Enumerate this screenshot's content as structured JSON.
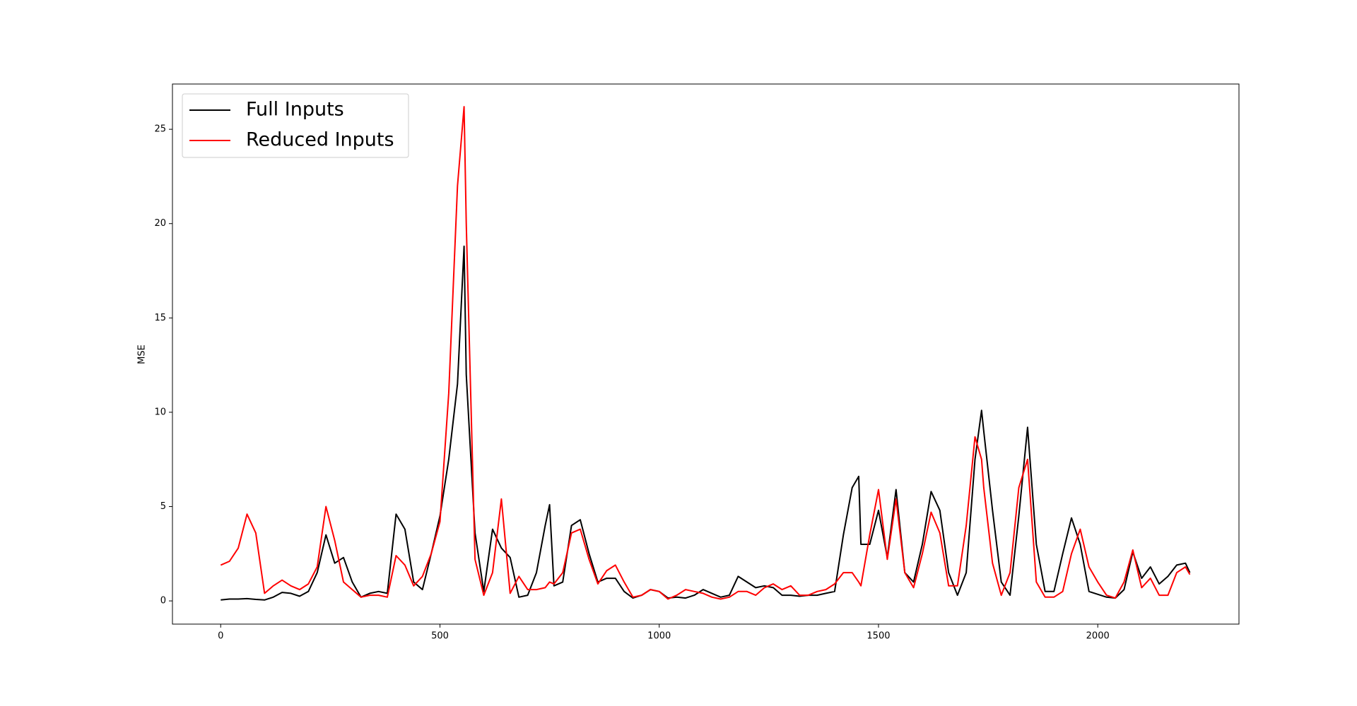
{
  "chart_data": {
    "type": "line",
    "y_label": "MSE",
    "x": [
      0,
      20,
      40,
      60,
      80,
      100,
      120,
      140,
      160,
      180,
      200,
      220,
      240,
      260,
      280,
      300,
      320,
      340,
      360,
      380,
      400,
      420,
      440,
      460,
      480,
      500,
      520,
      540,
      555,
      560,
      580,
      600,
      620,
      640,
      660,
      680,
      700,
      720,
      740,
      750,
      760,
      780,
      800,
      820,
      840,
      860,
      880,
      900,
      920,
      940,
      960,
      980,
      1000,
      1020,
      1040,
      1060,
      1080,
      1100,
      1120,
      1140,
      1160,
      1180,
      1200,
      1220,
      1240,
      1260,
      1280,
      1300,
      1320,
      1340,
      1360,
      1380,
      1400,
      1420,
      1440,
      1455,
      1460,
      1480,
      1500,
      1520,
      1540,
      1560,
      1580,
      1600,
      1620,
      1640,
      1660,
      1680,
      1700,
      1720,
      1735,
      1740,
      1760,
      1780,
      1800,
      1820,
      1840,
      1860,
      1880,
      1900,
      1920,
      1940,
      1960,
      1980,
      2000,
      2020,
      2040,
      2060,
      2080,
      2100,
      2120,
      2140,
      2160,
      2180,
      2200,
      2210
    ],
    "series": [
      {
        "name": "Full Inputs",
        "color": "#000000",
        "values": [
          0.05,
          0.1,
          0.1,
          0.12,
          0.08,
          0.05,
          0.2,
          0.45,
          0.4,
          0.25,
          0.5,
          1.5,
          3.5,
          2.0,
          2.3,
          1.0,
          0.2,
          0.4,
          0.5,
          0.4,
          4.6,
          3.8,
          1.0,
          0.6,
          2.5,
          4.5,
          7.5,
          11.5,
          18.8,
          12,
          3.6,
          0.5,
          3.8,
          2.8,
          2.3,
          0.2,
          0.3,
          1.5,
          4.0,
          5.1,
          0.8,
          1.0,
          4.0,
          4.3,
          2.5,
          1.0,
          1.2,
          1.2,
          0.5,
          0.15,
          0.3,
          0.6,
          0.5,
          0.15,
          0.2,
          0.15,
          0.3,
          0.6,
          0.4,
          0.2,
          0.3,
          1.3,
          1.0,
          0.7,
          0.8,
          0.7,
          0.3,
          0.3,
          0.25,
          0.3,
          0.3,
          0.4,
          0.5,
          3.5,
          6.0,
          6.6,
          3.0,
          3.0,
          4.8,
          2.3,
          5.9,
          1.5,
          1.0,
          3.0,
          5.8,
          4.8,
          1.5,
          0.3,
          1.5,
          7.5,
          10.1,
          9.0,
          4.8,
          1.0,
          0.3,
          4.5,
          9.2,
          3.0,
          0.5,
          0.5,
          2.5,
          4.4,
          3.0,
          0.5,
          0.35,
          0.2,
          0.15,
          0.6,
          2.6,
          1.2,
          1.8,
          0.9,
          1.3,
          1.9,
          2.0,
          1.5
        ]
      },
      {
        "name": "Reduced Inputs",
        "color": "#ff0000",
        "values": [
          1.9,
          2.1,
          2.8,
          4.6,
          3.6,
          0.4,
          0.8,
          1.1,
          0.8,
          0.6,
          0.9,
          1.8,
          5.0,
          3.2,
          1.0,
          0.6,
          0.2,
          0.3,
          0.3,
          0.2,
          2.4,
          1.9,
          0.8,
          1.3,
          2.5,
          4.2,
          11,
          22,
          26.2,
          20,
          2.2,
          0.3,
          1.5,
          5.4,
          0.4,
          1.3,
          0.6,
          0.6,
          0.7,
          1.0,
          0.9,
          1.5,
          3.6,
          3.8,
          2.2,
          0.9,
          1.6,
          1.9,
          1.0,
          0.2,
          0.3,
          0.6,
          0.5,
          0.1,
          0.3,
          0.6,
          0.5,
          0.4,
          0.2,
          0.1,
          0.2,
          0.5,
          0.5,
          0.3,
          0.7,
          0.9,
          0.6,
          0.8,
          0.3,
          0.3,
          0.5,
          0.6,
          0.9,
          1.5,
          1.5,
          1.0,
          0.8,
          3.5,
          5.9,
          2.2,
          5.4,
          1.5,
          0.7,
          2.5,
          4.7,
          3.6,
          0.8,
          0.8,
          4.0,
          8.7,
          7.5,
          6.0,
          2.0,
          0.3,
          1.5,
          6.0,
          7.5,
          1.0,
          0.2,
          0.2,
          0.5,
          2.5,
          3.8,
          1.8,
          1.0,
          0.3,
          0.15,
          1.0,
          2.7,
          0.7,
          1.2,
          0.3,
          0.3,
          1.5,
          1.8,
          1.4
        ]
      }
    ],
    "xlim": [
      -110,
      2322
    ],
    "ylim": [
      -1.23,
      27.4
    ],
    "xticks": [
      0,
      500,
      1000,
      1500,
      2000
    ],
    "yticks": [
      0,
      5,
      10,
      15,
      20,
      25
    ],
    "legend": "upper left"
  }
}
